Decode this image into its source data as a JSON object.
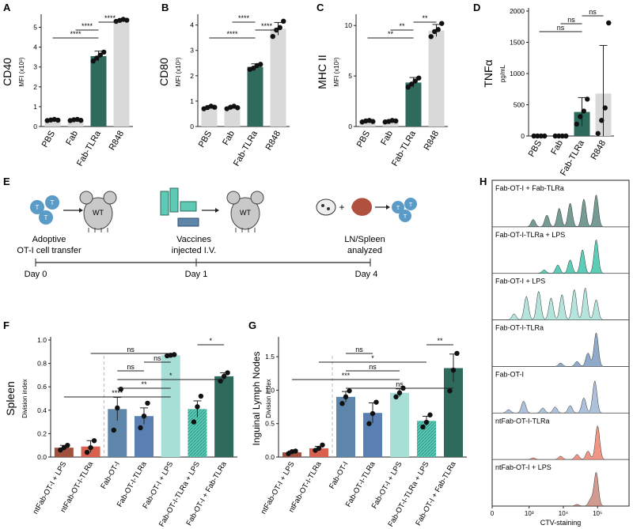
{
  "colors": {
    "dark_green": "#2f6b5d",
    "light_grey": "#d9d9d9",
    "teal_light": "#a7dfd6",
    "teal": "#57c9b5",
    "steel_blue": "#5e86aa",
    "blue": "#5a7fb3",
    "red": "#d9614f",
    "brown": "#a0523f",
    "dashed": "#bbbbbb"
  },
  "panel_letters": {
    "A": "A",
    "B": "B",
    "C": "C",
    "D": "D",
    "E": "E",
    "F": "F",
    "G": "G",
    "H": "H"
  },
  "chart_data": [
    {
      "id": "A",
      "type": "bar",
      "title": "",
      "ylabel": "CD40",
      "ylabel_sub": "MFI (x10³)",
      "categories": [
        "PBS",
        "Fab",
        "Fab-TLRa",
        "R848"
      ],
      "values": [
        0.33,
        0.33,
        3.55,
        5.35
      ],
      "errors": [
        0.05,
        0.05,
        0.25,
        0.05
      ],
      "points": [
        [
          0.3,
          0.33,
          0.36,
          0.32
        ],
        [
          0.3,
          0.34,
          0.36,
          0.31
        ],
        [
          3.3,
          3.45,
          3.6,
          3.75
        ],
        [
          5.3,
          5.35,
          5.4,
          5.36
        ]
      ],
      "bar_colors": [
        "#d9d9d9",
        "#d9d9d9",
        "#2f6b5d",
        "#d9d9d9"
      ],
      "ylim": [
        0,
        5.5
      ],
      "yticks": [
        0,
        1,
        2,
        3,
        4,
        5
      ],
      "significance": [
        {
          "from": 0,
          "to": 2,
          "label": "****"
        },
        {
          "from": 1,
          "to": 2,
          "label": "****"
        },
        {
          "from": 2,
          "to": 3,
          "label": "****"
        }
      ]
    },
    {
      "id": "B",
      "type": "bar",
      "ylabel": "CD80",
      "ylabel_sub": "MFI (x10³)",
      "categories": [
        "PBS",
        "Fab",
        "Fab-TLRa",
        "R848"
      ],
      "values": [
        0.75,
        0.75,
        2.35,
        3.85
      ],
      "errors": [
        0.05,
        0.05,
        0.12,
        0.25
      ],
      "points": [
        [
          0.7,
          0.75,
          0.8,
          0.76
        ],
        [
          0.7,
          0.76,
          0.8,
          0.74
        ],
        [
          2.25,
          2.3,
          2.4,
          2.45
        ],
        [
          3.55,
          3.8,
          3.9,
          4.15
        ]
      ],
      "bar_colors": [
        "#d9d9d9",
        "#d9d9d9",
        "#2f6b5d",
        "#d9d9d9"
      ],
      "ylim": [
        0,
        4.3
      ],
      "yticks": [
        0,
        1,
        2,
        3,
        4
      ],
      "significance": [
        {
          "from": 0,
          "to": 2,
          "label": "****"
        },
        {
          "from": 2,
          "to": 3,
          "label": "****"
        },
        {
          "from": 1,
          "to": 2,
          "label": "****"
        }
      ]
    },
    {
      "id": "C",
      "type": "bar",
      "ylabel": "MHC II",
      "ylabel_sub": "MFI (x10³)",
      "categories": [
        "PBS",
        "Fab",
        "Fab-TLRa",
        "R848"
      ],
      "values": [
        0.55,
        0.55,
        4.35,
        9.5
      ],
      "errors": [
        0.1,
        0.1,
        0.5,
        0.6
      ],
      "points": [
        [
          0.45,
          0.55,
          0.6,
          0.5
        ],
        [
          0.45,
          0.5,
          0.6,
          0.55
        ],
        [
          3.9,
          4.2,
          4.5,
          4.8
        ],
        [
          8.9,
          9.4,
          9.6,
          10.2
        ]
      ],
      "bar_colors": [
        "#d9d9d9",
        "#d9d9d9",
        "#2f6b5d",
        "#d9d9d9"
      ],
      "ylim": [
        0,
        10.8
      ],
      "yticks": [
        0,
        5,
        10
      ],
      "significance": [
        {
          "from": 0,
          "to": 2,
          "label": "**"
        },
        {
          "from": 1,
          "to": 2,
          "label": "**"
        },
        {
          "from": 2,
          "to": 3,
          "label": "**"
        }
      ]
    },
    {
      "id": "D",
      "type": "bar",
      "ylabel": "TNFα",
      "ylabel_sub": "pg/mL",
      "categories": [
        "PBS",
        "Fab",
        "Fab-TLRa",
        "R848"
      ],
      "values": [
        0,
        0,
        385,
        680
      ],
      "errors": [
        0,
        0,
        230,
        770
      ],
      "points": [
        [
          0,
          0,
          0,
          0
        ],
        [
          0,
          0,
          0,
          0
        ],
        [
          190,
          310,
          400,
          590
        ],
        [
          40,
          250,
          450,
          1810
        ]
      ],
      "bar_colors": [
        "#d9d9d9",
        "#d9d9d9",
        "#2f6b5d",
        "#d9d9d9"
      ],
      "ylim": [
        0,
        2000
      ],
      "yticks": [
        0,
        500,
        1000,
        1500,
        2000
      ],
      "significance": [
        {
          "from": 0,
          "to": 2,
          "label": "ns"
        },
        {
          "from": 1,
          "to": 2,
          "label": "ns"
        },
        {
          "from": 2,
          "to": 3,
          "label": "ns"
        }
      ]
    },
    {
      "id": "F",
      "type": "bar",
      "ylabel": "Spleen",
      "ylabel_sub": "Division index",
      "categories": [
        "ntFab-OT-I + LPS",
        "ntFab-OT-I-TLRa",
        "Fab-OT-I",
        "Fab-OT-I-TLRa",
        "Fab-OT-I + LPS",
        "Fab-OT-I-TLRa + LPS",
        "Fab-OT-I + Fab-TLRa"
      ],
      "values": [
        0.08,
        0.09,
        0.41,
        0.35,
        0.87,
        0.41,
        0.69
      ],
      "errors": [
        0.02,
        0.05,
        0.1,
        0.07,
        0.01,
        0.07,
        0.03
      ],
      "points": [
        [
          0.06,
          0.08,
          0.1
        ],
        [
          0.04,
          0.08,
          0.14
        ],
        [
          0.23,
          0.42,
          0.58
        ],
        [
          0.25,
          0.35,
          0.46
        ],
        [
          0.865,
          0.87,
          0.875
        ],
        [
          0.3,
          0.43,
          0.52
        ],
        [
          0.65,
          0.69,
          0.72
        ]
      ],
      "bar_colors": [
        "#a0523f",
        "#d9614f",
        "#5e86aa",
        "#5a7fb3",
        "#a7dfd6",
        "#57c9b5",
        "#2f6b5d"
      ],
      "hatched": [
        false,
        false,
        false,
        false,
        false,
        true,
        false
      ],
      "ylim": [
        0,
        1.0
      ],
      "yticks": [
        0.0,
        0.2,
        0.4,
        0.6,
        0.8,
        1.0
      ],
      "significance": [
        {
          "from": 0,
          "to": 4,
          "label": "****"
        },
        {
          "from": 2,
          "to": 4,
          "label": "**"
        },
        {
          "from": 2,
          "to": 6,
          "label": "*"
        },
        {
          "from": 2,
          "to": 3,
          "label": "ns"
        },
        {
          "from": 3,
          "to": 4,
          "label": "ns"
        },
        {
          "from": 1,
          "to": 4,
          "label": "ns"
        },
        {
          "from": 5,
          "to": 6,
          "label": "*"
        }
      ]
    },
    {
      "id": "G",
      "type": "bar",
      "ylabel": "Inguinal Lymph Nodes",
      "ylabel_sub": "Division index",
      "categories": [
        "ntFab-OT-I + LPS",
        "ntFab-OT-I-TLRa",
        "Fab-OT-I",
        "Fab-OT-I-TLRa",
        "Fab-OT-I + LPS",
        "Fab-OT-I-TLRa + LPS",
        "Fab-OT-I + Fab-TLRa"
      ],
      "values": [
        0.07,
        0.13,
        0.9,
        0.66,
        0.96,
        0.54,
        1.33
      ],
      "errors": [
        0.02,
        0.03,
        0.08,
        0.15,
        0.06,
        0.07,
        0.21
      ],
      "points": [
        [
          0.05,
          0.08,
          0.09
        ],
        [
          0.1,
          0.13,
          0.18
        ],
        [
          0.8,
          0.9,
          0.99
        ],
        [
          0.5,
          0.65,
          0.82
        ],
        [
          0.9,
          0.96,
          1.03
        ],
        [
          0.45,
          0.52,
          0.63
        ],
        [
          0.99,
          1.3,
          1.55
        ]
      ],
      "bar_colors": [
        "#a0523f",
        "#d9614f",
        "#5e86aa",
        "#5a7fb3",
        "#a7dfd6",
        "#57c9b5",
        "#2f6b5d"
      ],
      "hatched": [
        false,
        false,
        false,
        false,
        false,
        true,
        false
      ],
      "ylim": [
        0,
        1.75
      ],
      "yticks": [
        0.0,
        0.5,
        1.0,
        1.5
      ],
      "significance": [
        {
          "from": 2,
          "to": 6,
          "label": "ns"
        },
        {
          "from": 0,
          "to": 4,
          "label": "***"
        },
        {
          "from": 2,
          "to": 4,
          "label": "ns"
        },
        {
          "from": 1,
          "to": 5,
          "label": "*"
        },
        {
          "from": 2,
          "to": 3,
          "label": "ns"
        },
        {
          "from": 5,
          "to": 6,
          "label": "**"
        }
      ]
    },
    {
      "id": "H",
      "type": "area",
      "title": "",
      "xlabel": "CTV-staining",
      "xticks": [
        "0",
        "10³",
        "10⁴",
        "10⁵"
      ],
      "samples": [
        {
          "name": "Fab-OT-I + Fab-TLRa",
          "color": "#5d8a80",
          "peaks": [
            [
              0.3,
              0.22
            ],
            [
              0.4,
              0.35
            ],
            [
              0.49,
              0.55
            ],
            [
              0.57,
              0.7
            ],
            [
              0.67,
              0.82
            ],
            [
              0.76,
              0.95
            ]
          ]
        },
        {
          "name": "Fab-OT-I-TLRa + LPS",
          "color": "#3fc5aa",
          "peaks": [
            [
              0.38,
              0.1
            ],
            [
              0.48,
              0.25
            ],
            [
              0.57,
              0.4
            ],
            [
              0.66,
              0.7
            ],
            [
              0.76,
              1.0
            ]
          ]
        },
        {
          "name": "Fab-OT-I + LPS",
          "color": "#a7dfd6",
          "peaks": [
            [
              0.16,
              0.18
            ],
            [
              0.25,
              0.7
            ],
            [
              0.34,
              0.85
            ],
            [
              0.43,
              0.65
            ],
            [
              0.51,
              0.75
            ],
            [
              0.6,
              0.9
            ],
            [
              0.68,
              0.95
            ],
            [
              0.76,
              0.6
            ]
          ]
        },
        {
          "name": "Fab-OT-I-TLRa",
          "color": "#7b9cc0",
          "peaks": [
            [
              0.5,
              0.1
            ],
            [
              0.62,
              0.15
            ],
            [
              0.7,
              0.4
            ],
            [
              0.76,
              1.0
            ]
          ]
        },
        {
          "name": "Fab-OT-I",
          "color": "#9fb6d4",
          "peaks": [
            [
              0.12,
              0.1
            ],
            [
              0.23,
              0.35
            ],
            [
              0.37,
              0.15
            ],
            [
              0.46,
              0.18
            ],
            [
              0.57,
              0.22
            ],
            [
              0.67,
              0.45
            ],
            [
              0.75,
              0.95
            ]
          ]
        },
        {
          "name": "ntFab-OT-I-TLRa",
          "color": "#ee8270",
          "peaks": [
            [
              0.3,
              0.05
            ],
            [
              0.5,
              0.1
            ],
            [
              0.62,
              0.15
            ],
            [
              0.7,
              0.25
            ],
            [
              0.77,
              1.0
            ]
          ]
        },
        {
          "name": "ntFab-OT-I + LPS",
          "color": "#c9897d",
          "peaks": [
            [
              0.62,
              0.05
            ],
            [
              0.72,
              0.2
            ],
            [
              0.76,
              1.0
            ]
          ]
        }
      ]
    }
  ],
  "schematic": {
    "steps": [
      {
        "label_line1": "Adoptive",
        "label_line2": "OT-I cell transfer",
        "day": "Day 0"
      },
      {
        "label_line1": "Vaccines",
        "label_line2": "injected I.V.",
        "day": "Day 1"
      },
      {
        "label_line1": "LN/Spleen",
        "label_line2": "analyzed",
        "day": "Day 4"
      }
    ],
    "mouse_label": "WT",
    "cell_label": "T",
    "plus": "+"
  }
}
